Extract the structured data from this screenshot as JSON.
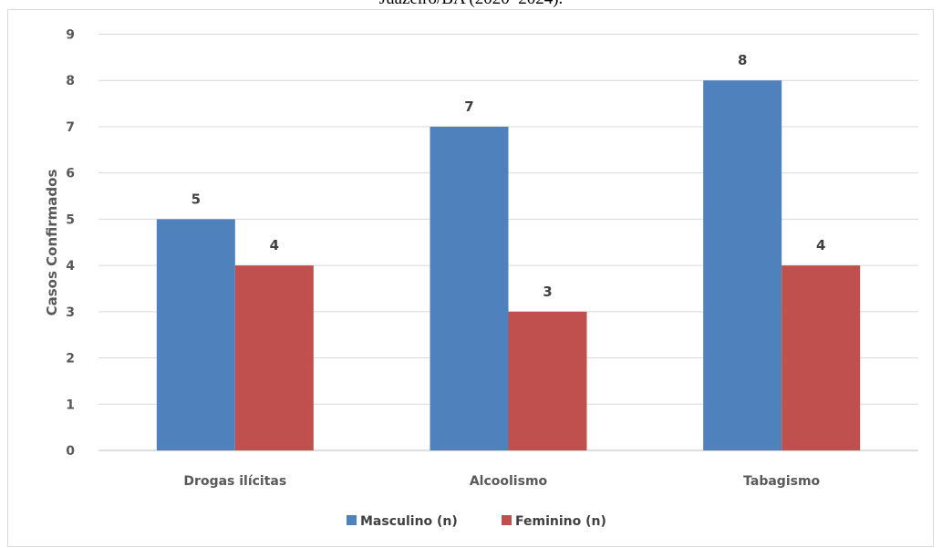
{
  "caption": "Juazeiro/BA (2020–2024).",
  "chart_data": {
    "type": "bar",
    "categories": [
      "Drogas ilícitas",
      "Alcoolismo",
      "Tabagismo"
    ],
    "series": [
      {
        "name": "Masculino (n)",
        "values": [
          5,
          7,
          8
        ],
        "color": "#4f81bd"
      },
      {
        "name": "Feminino (n)",
        "values": [
          4,
          3,
          4
        ],
        "color": "#c0504d"
      }
    ],
    "title": "",
    "xlabel": "",
    "ylabel": "Casos Confirmados",
    "ylim": [
      0,
      9
    ],
    "yticks": [
      0,
      1,
      2,
      3,
      4,
      5,
      6,
      7,
      8,
      9
    ],
    "grid": true,
    "legend_position": "bottom",
    "data_labels": true
  }
}
